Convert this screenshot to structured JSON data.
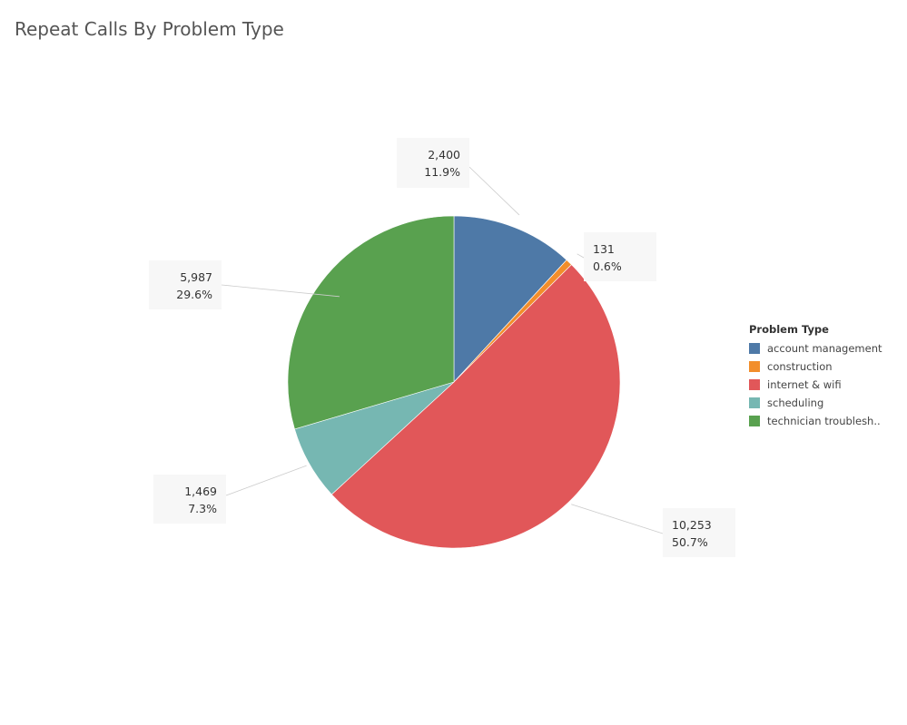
{
  "title": "Repeat Calls By Problem Type",
  "legend": {
    "title": "Problem Type",
    "placement": "right"
  },
  "chart_data": {
    "type": "pie",
    "title": "Repeat Calls By Problem Type",
    "slices": [
      {
        "category": "account management",
        "legend_label": "account management",
        "value": 2400,
        "value_label": "2,400",
        "percent_label": "11.9%",
        "color": "#4e79a7"
      },
      {
        "category": "construction",
        "legend_label": "construction",
        "value": 131,
        "value_label": "131",
        "percent_label": "0.6%",
        "color": "#f28e2b"
      },
      {
        "category": "internet & wifi",
        "legend_label": "internet & wifi",
        "value": 10253,
        "value_label": "10,253",
        "percent_label": "50.7%",
        "color": "#e15759"
      },
      {
        "category": "scheduling",
        "legend_label": "scheduling",
        "value": 1469,
        "value_label": "1,469",
        "percent_label": "7.3%",
        "color": "#76b7b2"
      },
      {
        "category": "technician troubleshooting",
        "legend_label": "technician troublesh..",
        "value": 5987,
        "value_label": "5,987",
        "percent_label": "29.6%",
        "color": "#59a14f"
      }
    ]
  }
}
